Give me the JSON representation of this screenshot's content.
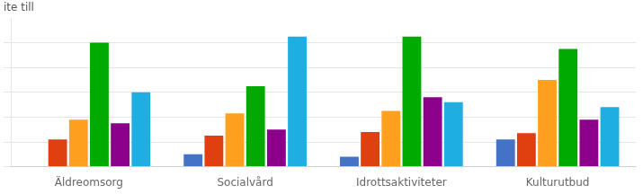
{
  "chart_data": {
    "type": "bar",
    "annotations": [
      "ite till"
    ],
    "categories": [
      "Äldreomsorg",
      "Socialvård",
      "Idrottsaktiviteter",
      "Kulturutbud"
    ],
    "series": [
      {
        "color": "#4472C4",
        "values": [
          0,
          10,
          8,
          22
        ]
      },
      {
        "color": "#E04010",
        "values": [
          22,
          25,
          28,
          27
        ]
      },
      {
        "color": "#FFA020",
        "values": [
          38,
          43,
          45,
          70
        ]
      },
      {
        "color": "#00AA00",
        "values": [
          100,
          65,
          105,
          95
        ]
      },
      {
        "color": "#8B008B",
        "values": [
          35,
          30,
          56,
          38
        ]
      },
      {
        "color": "#1EAEE0",
        "values": [
          60,
          105,
          52,
          48
        ]
      }
    ],
    "ylim": [
      0,
      120
    ],
    "yticks": [
      0,
      20,
      40,
      60,
      80,
      100
    ],
    "grid": true,
    "tick_labels": "x"
  }
}
